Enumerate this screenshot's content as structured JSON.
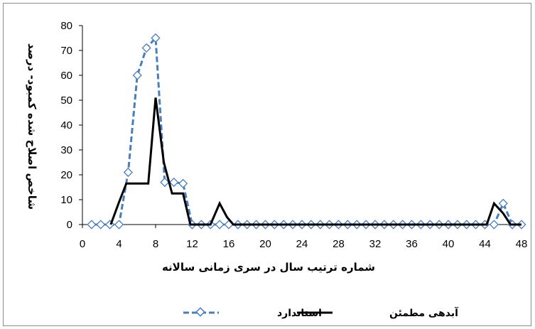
{
  "chart_data": {
    "type": "line",
    "xlabel": "شماره ترتیب سال در سری زمانی سالانه",
    "ylabel": "شاخص اصلاح شده کمبود- درصد",
    "xlim": [
      0,
      48
    ],
    "ylim": [
      0,
      80
    ],
    "x_ticks": [
      0,
      4,
      8,
      12,
      16,
      20,
      24,
      28,
      32,
      36,
      40,
      44,
      48
    ],
    "y_ticks": [
      0,
      10,
      20,
      30,
      40,
      50,
      60,
      70,
      80
    ],
    "grid": false,
    "legend_position": "bottom",
    "series": [
      {
        "name": "استاندارد",
        "style": "dashed-diamond",
        "color": "#4a7ebb",
        "x": [
          1,
          2,
          3,
          4,
          5,
          6,
          7,
          8,
          9,
          10,
          11,
          12,
          13,
          14,
          15,
          16,
          17,
          18,
          19,
          20,
          21,
          22,
          23,
          24,
          25,
          26,
          27,
          28,
          29,
          30,
          31,
          32,
          33,
          34,
          35,
          36,
          37,
          38,
          39,
          40,
          41,
          42,
          43,
          44,
          45,
          46,
          47,
          48
        ],
        "values": [
          0,
          0,
          0,
          0,
          21,
          60,
          71,
          75,
          17,
          17,
          16.5,
          0,
          0,
          0,
          0,
          0,
          0,
          0,
          0,
          0,
          0,
          0,
          0,
          0,
          0,
          0,
          0,
          0,
          0,
          0,
          0,
          0,
          0,
          0,
          0,
          0,
          0,
          0,
          0,
          0,
          0,
          0,
          0,
          0,
          0,
          8.5,
          0,
          0
        ]
      },
      {
        "name": "آبدهی مطمئن",
        "style": "solid-step",
        "color": "#000000",
        "x": [
          3.1,
          4,
          4.8,
          7.2,
          8,
          8.9,
          9.8,
          11,
          11.8,
          14,
          15,
          15.8,
          16.5,
          44.2,
          45,
          46,
          46.8,
          48
        ],
        "values": [
          0,
          9,
          16.5,
          16.5,
          51,
          25,
          12.5,
          12.5,
          0,
          0,
          8.5,
          3,
          0,
          0,
          8.5,
          4.5,
          0,
          0
        ]
      }
    ]
  }
}
